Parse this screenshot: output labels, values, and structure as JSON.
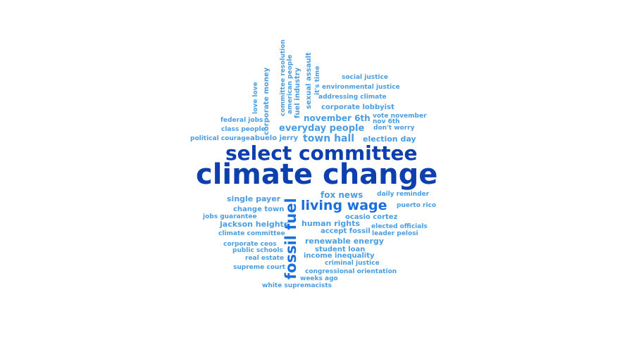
{
  "wordcloud": {
    "colors": {
      "dark": "#0d3fae",
      "medium": "#1a6fdd",
      "light": "#4a9de0"
    },
    "words": {
      "climate_change": "climate change",
      "select_committee": "select committee",
      "fossil_fuel": "fossil fuel",
      "living_wage": "living wage",
      "town_hall": "town hall",
      "everyday_people": "everyday people",
      "november_6th": "november 6th",
      "election_day": "election day",
      "fox_news": "fox news",
      "single_payer": "single payer",
      "change_town": "change town",
      "jackson_heights": "jackson heights",
      "human_rights": "human rights",
      "ocasio_cortez": "ocasio cortez",
      "accept_fossil": "accept fossil",
      "renewable_energy": "renewable energy",
      "student_loan": "student loan",
      "income_inequality": "income inequality",
      "corporate_lobbyist": "corporate lobbyist",
      "abuelo_jerry": "abuelo jerry",
      "social_justice": "social justice",
      "environmental_justice": "environmental justice",
      "addressing_climate": "addressing climate",
      "vote_november": "vote november",
      "nov_6th": "nov 6th",
      "dont_worry": "don't worry",
      "federal_jobs": "federal jobs",
      "class_people": "class people",
      "political_courage": "political courage",
      "love_love": "love love",
      "corporate_money": "corporate money",
      "committee_resolution": "committee resolution",
      "american_people": "american people",
      "fuel_industry": "fuel industry",
      "sexual_assault": "sexual assault",
      "its_time": "it's time",
      "daily_reminder": "daily reminder",
      "puerto_rico": "puerto rico",
      "elected_officials": "elected officials",
      "leader_pelosi": "leader pelosi",
      "jobs_guarantee": "jobs guarantee",
      "climate_committee": "climate committee",
      "corporate_ceos": "corporate ceos",
      "public_schools": "public schools",
      "real_estate": "real estate",
      "supreme_court": "supreme court",
      "criminal_justice": "criminal justice",
      "congressional_orientation": "congressional orientation",
      "weeks_ago": "weeks ago",
      "white_supremacists": "white supremacists"
    }
  }
}
